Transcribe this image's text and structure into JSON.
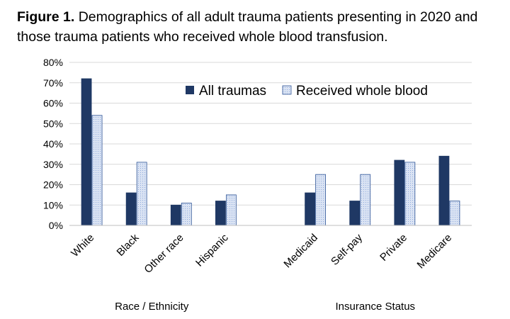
{
  "caption": {
    "lead": "Figure 1.",
    "text": "Demographics of all adult trauma patients presenting in 2020 and those trauma patients who received whole blood transfusion."
  },
  "chart_data": {
    "type": "bar",
    "title": "",
    "ylabel": "",
    "ylim": [
      0,
      80
    ],
    "y_ticks": [
      0,
      10,
      20,
      30,
      40,
      50,
      60,
      70,
      80
    ],
    "y_tick_labels": [
      "0%",
      "10%",
      "20%",
      "30%",
      "40%",
      "50%",
      "60%",
      "70%",
      "80%"
    ],
    "grid": true,
    "legend_position": "top-right",
    "categories": [
      "White",
      "Black",
      "Other race",
      "Hispanic",
      "Medicaid",
      "Self-pay",
      "Private",
      "Medicare"
    ],
    "groups": [
      {
        "label": "Race / Ethnicity",
        "categories": [
          "White",
          "Black",
          "Other race",
          "Hispanic"
        ]
      },
      {
        "label": "Insurance Status",
        "categories": [
          "Medicaid",
          "Self-pay",
          "Private",
          "Medicare"
        ]
      }
    ],
    "series": [
      {
        "name": "All traumas",
        "color": "#1f3864",
        "values": [
          72,
          16,
          10,
          12,
          16,
          12,
          32,
          34
        ]
      },
      {
        "name": "Received whole blood",
        "color": "#dae3f3",
        "values": [
          54,
          31,
          11,
          15,
          25,
          25,
          31,
          12
        ]
      }
    ]
  }
}
